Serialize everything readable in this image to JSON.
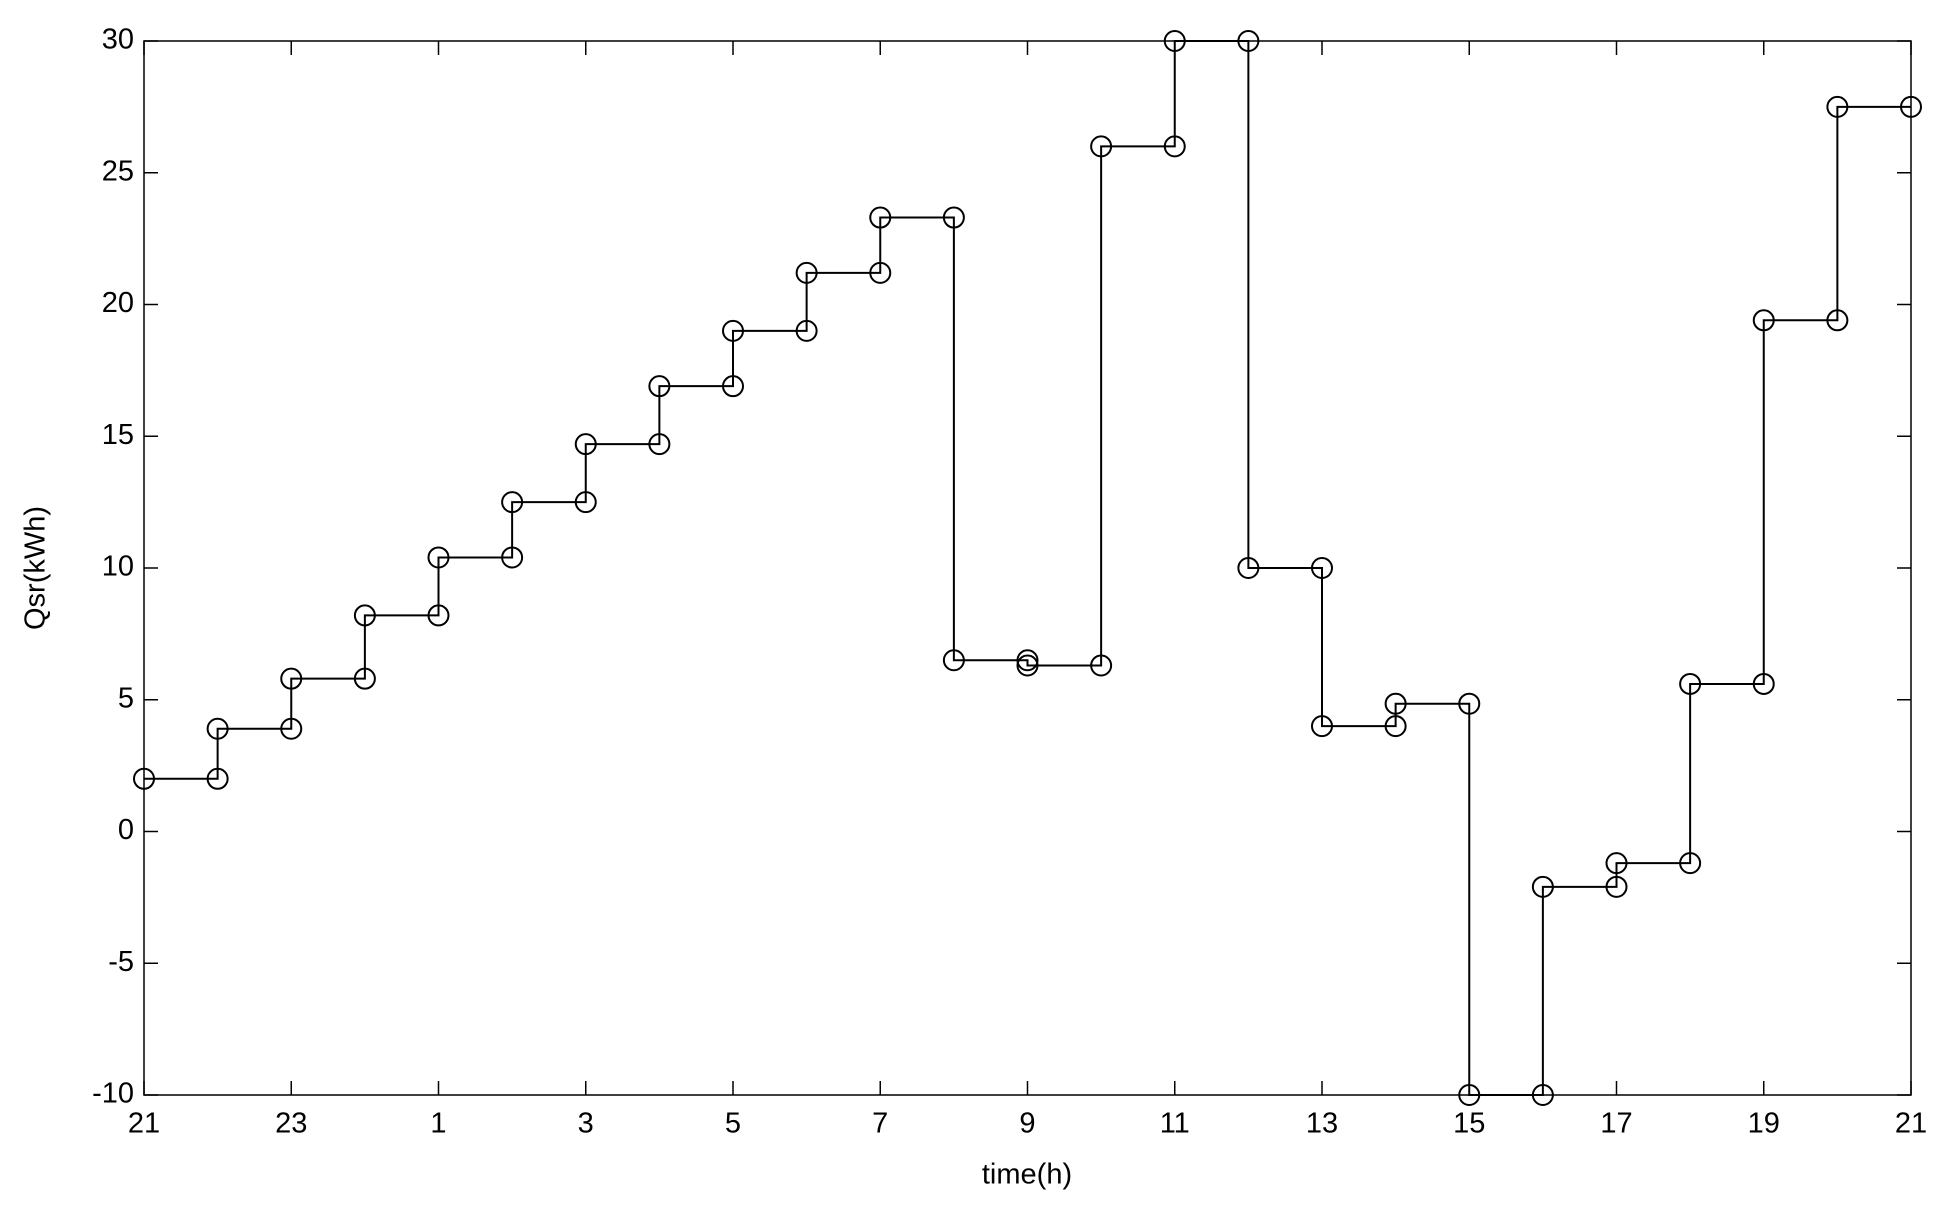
{
  "chart_data": {
    "type": "line",
    "xlabel": "time(h)",
    "ylabel": "Qsr(kWh)",
    "x": [
      0,
      1,
      1,
      2,
      2,
      3,
      3,
      4,
      4,
      5,
      5,
      6,
      6,
      7,
      7,
      8,
      8,
      9,
      9,
      10,
      10,
      11,
      11,
      12,
      12,
      13,
      13,
      14,
      14,
      15,
      15,
      16,
      16,
      17,
      17,
      18,
      18,
      19,
      19,
      20,
      20,
      21,
      21,
      22,
      22,
      23,
      23,
      24
    ],
    "series": [
      {
        "color": "#000000",
        "marker": "o",
        "values": [
          2,
          2,
          3.9,
          3.9,
          5.8,
          5.8,
          8.2,
          8.2,
          10.4,
          10.4,
          12.5,
          12.5,
          14.7,
          14.7,
          16.9,
          16.9,
          19,
          19,
          21.2,
          21.2,
          23.3,
          23.3,
          6.5,
          6.5,
          6.3,
          6.3,
          26,
          26,
          30,
          30,
          10,
          10,
          4,
          4,
          4.85,
          4.85,
          -10,
          -10,
          -2.1,
          -2.1,
          -1.2,
          -1.2,
          5.6,
          5.6,
          19.4,
          19.4,
          27.5,
          27.5
        ]
      }
    ],
    "xlim": [
      0,
      24
    ],
    "xticks": [
      {
        "value": 0,
        "label": "21"
      },
      {
        "value": 2,
        "label": "23"
      },
      {
        "value": 4,
        "label": "1"
      },
      {
        "value": 6,
        "label": "3"
      },
      {
        "value": 8,
        "label": "5"
      },
      {
        "value": 10,
        "label": "7"
      },
      {
        "value": 12,
        "label": "9"
      },
      {
        "value": 14,
        "label": "11"
      },
      {
        "value": 16,
        "label": "13"
      },
      {
        "value": 18,
        "label": "15"
      },
      {
        "value": 20,
        "label": "17"
      },
      {
        "value": 22,
        "label": "19"
      },
      {
        "value": 24,
        "label": "21"
      }
    ],
    "ylim": [
      -10,
      30
    ],
    "yticks": [
      -10,
      -5,
      0,
      5,
      10,
      15,
      20,
      25,
      30
    ],
    "grid": false
  }
}
